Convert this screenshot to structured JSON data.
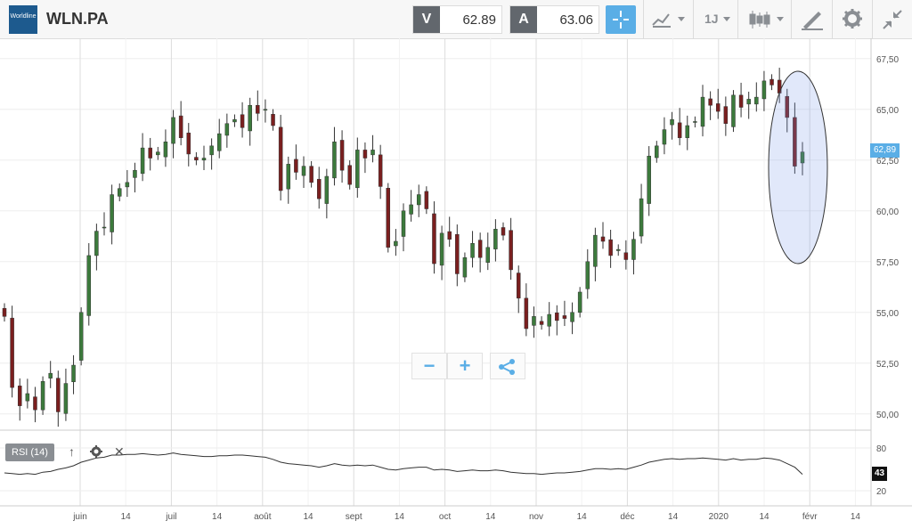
{
  "header": {
    "logo_text": "Worldline",
    "symbol": "WLN.PA",
    "bid_tag": "V",
    "bid_value": "62.89",
    "ask_tag": "A",
    "ask_value": "63.06",
    "interval_label": "1J",
    "icons": [
      "crosshair-icon",
      "chart-type-icon",
      "candlestick-icon",
      "drawing-tool-icon",
      "gear-icon",
      "collapse-icon"
    ]
  },
  "chart_data": {
    "type": "candlestick",
    "y_ticks": [
      "67,50",
      "65,00",
      "62,50",
      "60,00",
      "57,50",
      "55,00",
      "52,50",
      "50,00"
    ],
    "y_tick_values": [
      67.5,
      65,
      62.5,
      60,
      57.5,
      55,
      52.5,
      50
    ],
    "ylim": [
      49.2,
      68.5
    ],
    "x_ticks": [
      "juin",
      "14",
      "juil",
      "14",
      "août",
      "14",
      "sept",
      "14",
      "oct",
      "14",
      "nov",
      "14",
      "déc",
      "14",
      "2020",
      "14",
      "févr",
      "14"
    ],
    "last_price_label": "62,89",
    "closes": [
      54.8,
      51.3,
      50.4,
      51.0,
      50.2,
      51.6,
      52.0,
      50.1,
      51.5,
      52.4,
      55.0,
      57.8,
      59.0,
      59.2,
      60.8,
      61.1,
      61.4,
      62.0,
      63.1,
      62.6,
      62.9,
      63.4,
      64.6,
      63.6,
      62.8,
      62.5,
      62.6,
      63.2,
      63.8,
      64.3,
      64.5,
      64.1,
      65.2,
      64.8,
      65.0,
      64.2,
      61.0,
      62.3,
      61.9,
      62.2,
      61.4,
      60.6,
      61.7,
      63.4,
      62.0,
      61.3,
      63.0,
      62.6,
      63.0,
      61.2,
      58.2,
      58.5,
      60.0,
      60.3,
      60.8,
      60.1,
      57.4,
      58.9,
      58.6,
      56.9,
      57.7,
      58.4,
      57.7,
      58.2,
      59.1,
      58.8,
      57.1,
      55.7,
      54.2,
      54.8,
      54.4,
      54.9,
      54.6,
      54.7,
      55.0,
      56.0,
      57.5,
      58.8,
      58.5,
      57.8,
      58.1,
      57.6,
      58.6,
      60.6,
      62.7,
      63.2,
      64.0,
      64.5,
      63.6,
      64.2,
      64.4,
      65.6,
      65.2,
      64.9,
      64.3,
      65.7,
      65.1,
      65.5,
      65.6,
      66.4,
      66.2,
      65.8,
      64.6,
      62.2,
      62.9
    ],
    "highlight": "ellipse around last candles",
    "rsi": {
      "label": "RSI (14)",
      "ticks": [
        "80",
        "20"
      ],
      "tick_values": [
        80,
        20
      ],
      "current_label": "43",
      "values": [
        45,
        44,
        43,
        44,
        43,
        46,
        47,
        50,
        52,
        55,
        60,
        63,
        66,
        67,
        70,
        70,
        71,
        71,
        72,
        71,
        70,
        71,
        73,
        71,
        70,
        69,
        68,
        68,
        69,
        69,
        70,
        70,
        69,
        68,
        67,
        64,
        60,
        58,
        57,
        56,
        55,
        53,
        55,
        58,
        56,
        55,
        56,
        55,
        56,
        53,
        50,
        49,
        51,
        52,
        53,
        53,
        49,
        50,
        49,
        47,
        48,
        49,
        48,
        48,
        49,
        48,
        46,
        45,
        44,
        44,
        43,
        44,
        45,
        45,
        46,
        47,
        49,
        51,
        51,
        50,
        51,
        50,
        53,
        56,
        60,
        62,
        64,
        65,
        64,
        65,
        65,
        66,
        65,
        64,
        63,
        65,
        63,
        64,
        64,
        66,
        65,
        63,
        58,
        53,
        43
      ]
    }
  },
  "zoom": {
    "minus": "−",
    "plus": "+",
    "share_icon": "share-icon"
  },
  "rsi_panel": {
    "settings_icon": "gear-icon",
    "close_icon": "close-icon",
    "arrow_icon": "up-arrow-icon"
  }
}
